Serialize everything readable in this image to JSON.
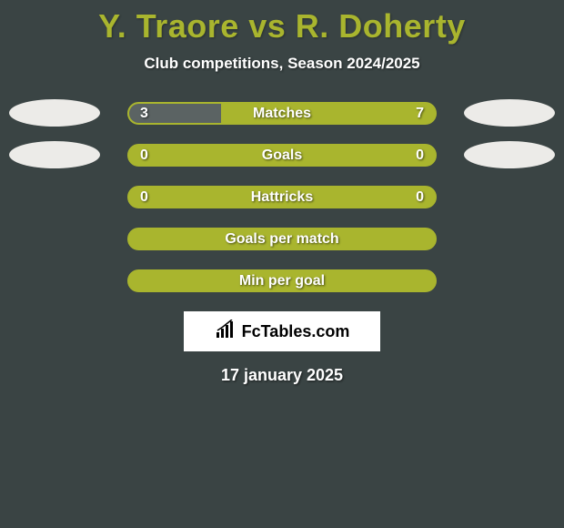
{
  "title": "Y. Traore vs R. Doherty",
  "subtitle": "Club competitions, Season 2024/2025",
  "colors": {
    "background": "#3a4444",
    "accent": "#a9b52e",
    "accent_border": "#a9b52e",
    "dark_fill": "#5b6363",
    "white": "#ffffff",
    "avatar": "#ecebe8"
  },
  "rows": [
    {
      "label": "Matches",
      "left_value": "3",
      "right_value": "7",
      "left_pct": 30,
      "right_pct": 70,
      "left_color": "#5b6363",
      "right_color": "#a9b52e",
      "bg_color": "#a9b52e",
      "show_avatars": true
    },
    {
      "label": "Goals",
      "left_value": "0",
      "right_value": "0",
      "left_pct": 0,
      "right_pct": 0,
      "left_color": "#5b6363",
      "right_color": "#5b6363",
      "bg_color": "#a9b52e",
      "show_avatars": true
    },
    {
      "label": "Hattricks",
      "left_value": "0",
      "right_value": "0",
      "left_pct": 0,
      "right_pct": 0,
      "left_color": "#5b6363",
      "right_color": "#5b6363",
      "bg_color": "#a9b52e",
      "show_avatars": false
    },
    {
      "label": "Goals per match",
      "left_value": "",
      "right_value": "",
      "left_pct": 0,
      "right_pct": 0,
      "left_color": "#5b6363",
      "right_color": "#5b6363",
      "bg_color": "#a9b52e",
      "show_avatars": false
    },
    {
      "label": "Min per goal",
      "left_value": "",
      "right_value": "",
      "left_pct": 0,
      "right_pct": 0,
      "left_color": "#5b6363",
      "right_color": "#5b6363",
      "bg_color": "#a9b52e",
      "show_avatars": false
    }
  ],
  "logo_text": "FcTables.com",
  "date": "17 january 2025",
  "title_fontsize": 36,
  "subtitle_fontsize": 17,
  "bar_label_fontsize": 16,
  "date_fontsize": 18
}
